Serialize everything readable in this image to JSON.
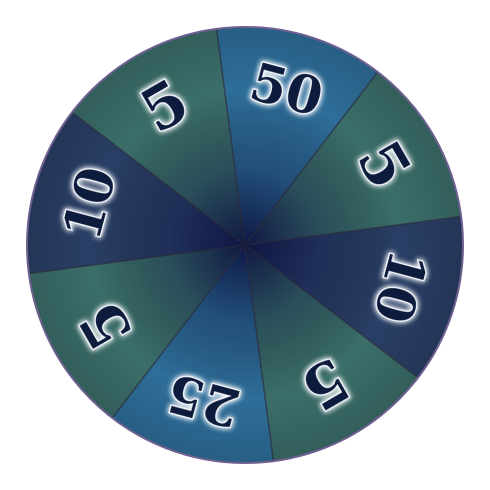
{
  "wheel": {
    "segments": [
      {
        "label": "50",
        "color": "#2e6e9a"
      },
      {
        "label": "5",
        "color": "#3b6e6a"
      },
      {
        "label": "10",
        "color": "#2a3f66"
      },
      {
        "label": "5",
        "color": "#3b6e6a"
      },
      {
        "label": "25",
        "color": "#2e6e9a"
      },
      {
        "label": "5",
        "color": "#3b6e6a"
      },
      {
        "label": "10",
        "color": "#2a3f66"
      },
      {
        "label": "5",
        "color": "#3b6e6a"
      }
    ],
    "colors": {
      "rim": "#6e6090",
      "divider": "#2a2a3a",
      "hub": "#1b1b3a",
      "center_glow": "#0d1440",
      "text_fill": "#0c1a3c",
      "text_glow": "#f4f8ff"
    }
  }
}
